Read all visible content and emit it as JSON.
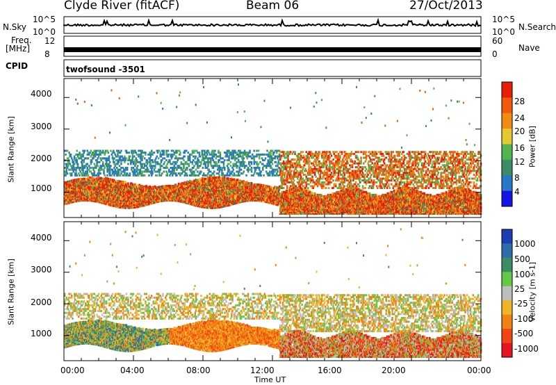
{
  "header": {
    "station": "Clyde River (fitACF)",
    "beam": "Beam 06",
    "date": "27/Oct/2013"
  },
  "panels": {
    "nsky_label": "N.Sky",
    "nsky_top": "10^5",
    "nsky_bottom": "10^0",
    "nsearch_label": "N.Search",
    "nsearch_top": "10^5",
    "nsearch_bottom": "10^0",
    "freq_label_line1": "Freq.",
    "freq_label_line2": "[MHz]",
    "freq_tick_12": "12",
    "freq_tick_8": "8",
    "nave_label": "Nave",
    "nave_tick_60": "60",
    "nave_tick_0": "0",
    "cpid_label": "CPID",
    "cpid_value": "twofsound -3501"
  },
  "chart_data": [
    {
      "type": "heatmap",
      "title": "",
      "xlabel": "Time UT",
      "ylabel": "Slant Range [km]",
      "ylim": [
        200,
        4600
      ],
      "xlim": [
        "00:00",
        "24:00"
      ],
      "x_ticks": [
        "00:00",
        "04:00",
        "08:00",
        "12:00",
        "16:00",
        "20:00",
        "00:00"
      ],
      "y_ticks": [
        1000,
        2000,
        3000,
        4000
      ],
      "colorbar": {
        "label": "Power [dB]",
        "ticks": [
          4,
          8,
          12,
          16,
          20,
          24,
          28
        ],
        "colors": [
          "#1414e6",
          "#2878c8",
          "#3c8c64",
          "#50b450",
          "#e6c832",
          "#f08c14",
          "#f05a0a",
          "#e61e0a"
        ]
      },
      "summary": {
        "main_band_km_0000_1230": [
          600,
          1450
        ],
        "main_band_km_1230_2400": [
          300,
          1000
        ],
        "upper_scatter_km": [
          1800,
          2400
        ]
      }
    },
    {
      "type": "heatmap",
      "title": "",
      "xlabel": "Time UT",
      "ylabel": "Slant Range [km]",
      "ylim": [
        200,
        4600
      ],
      "x_ticks": [
        "00:00",
        "04:00",
        "08:00",
        "12:00",
        "16:00",
        "20:00",
        "00:00"
      ],
      "y_ticks": [
        1000,
        2000,
        3000,
        4000
      ],
      "colorbar": {
        "label": "Velocity [m s-1]",
        "ticks": [
          1000,
          500,
          100,
          25,
          -25,
          -100,
          -500,
          -1000
        ],
        "colors": [
          "#1e3cb4",
          "#2d6eaa",
          "#3c8c64",
          "#64c846",
          "#bebebe",
          "#f0b428",
          "#f08214",
          "#f04614",
          "#e6141e"
        ]
      }
    }
  ],
  "colors": {
    "frame": "#000000"
  }
}
